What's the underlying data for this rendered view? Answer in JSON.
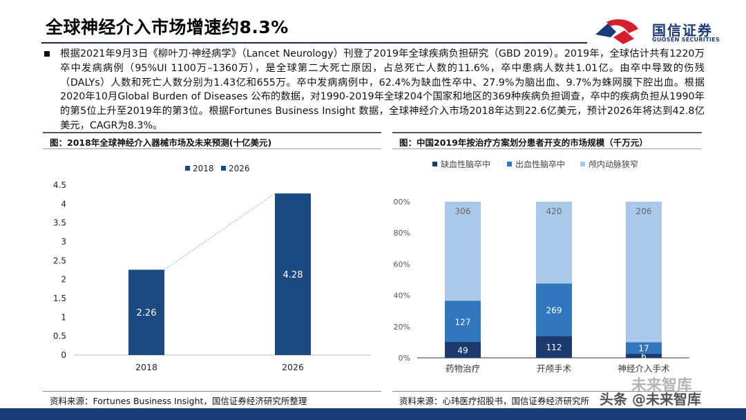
{
  "header": {
    "title": "全球神经介入市场增速约8.3%",
    "logo_cn": "国信证券",
    "logo_en": "GUOSEN SECURITIES"
  },
  "body_text": "根据2021年9月3日《柳叶刀·神经病学》（Lancet Neurology）刊登了2019年全球疾病负担研究（GBD 2019）。2019年，全球估计共有1220万卒中发病病例（95%UI 1100万–1360万），是全球第二大死亡原因，占总死亡人数的11.6%，卒中患病人数共1.01亿。由卒中导致的伤残（DALYs）人数和死亡人数分别为1.43亿和655万。卒中发病病例中，62.4%为缺血性卒中、27.9%为脑出血、9.7%为蛛网膜下腔出血。根据2020年10月Global Burden of Diseases 公布的数据，对1990-2019年全球204个国家和地区的369种疾病负担调查，卒中的疾病负担从1990年的第5位上升至2019年的第3位。根据Fortunes Business Insight 数据，全球神经介入市场2018年达到22.6亿美元，预计2026年将达到42.8亿美元，CAGR为8.3%。",
  "left_chart": {
    "heading": "图：2018年全球神经介入器械市场及未来预测(十亿美元)",
    "source": "资料来源：Fortunes Business Insight，国信证券经济研究所整理"
  },
  "right_chart": {
    "heading": "图：中国2019年按治疗方案划分患者开支的市场规模（千万元）",
    "source": "资料来源：心玮医疗招股书，国信证券经济研究所"
  },
  "watermark": {
    "line1": "未来智库",
    "line2": "头条 @未来智库"
  },
  "chart_data": [
    {
      "type": "bar",
      "title": "2018年全球神经介入器械市场及未来预测(十亿美元)",
      "categories": [
        "2018",
        "2026"
      ],
      "values": [
        2.26,
        4.28
      ],
      "legend": [
        "2018",
        "2026"
      ],
      "ylim": [
        0,
        4.5
      ],
      "yticks": [
        "0",
        "0.5",
        "1",
        "1.5",
        "2",
        "2.5",
        "3",
        "3.5",
        "4",
        "4.5"
      ],
      "color": "#1b4a80",
      "xlabel": "",
      "ylabel": ""
    },
    {
      "type": "bar",
      "stacked": "percent",
      "title": "中国2019年按治疗方案划分患者开支的市场规模（千万元）",
      "categories": [
        "药物治疗",
        "开颅手术",
        "神经介入手术"
      ],
      "series": [
        {
          "name": "缺血性脑卒中",
          "values": [
            49,
            112,
            6
          ],
          "color": "#1b3a6e"
        },
        {
          "name": "出血性脑卒中",
          "values": [
            127,
            269,
            17
          ],
          "color": "#3277bd"
        },
        {
          "name": "颅内动脉狭窄",
          "values": [
            306,
            420,
            206
          ],
          "color": "#a9c8ea"
        }
      ],
      "yticks": [
        "0%",
        "20%",
        "40%",
        "60%",
        "80%",
        "100%"
      ],
      "ylim": [
        0,
        100
      ]
    }
  ]
}
